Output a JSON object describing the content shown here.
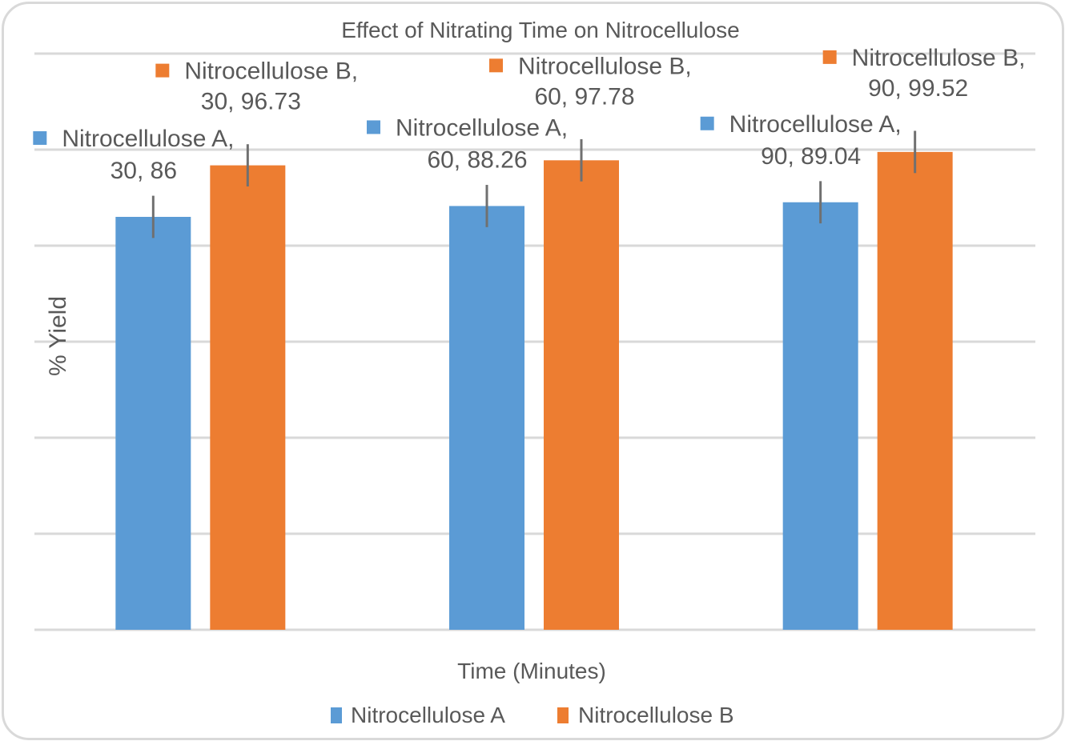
{
  "chart_data": {
    "type": "bar",
    "title": "Effect of Nitrating Time on Nitrocellulose",
    "xlabel": "Time (Minutes)",
    "ylabel": "% Yield",
    "categories": [
      "30",
      "60",
      "90"
    ],
    "ylim": [
      0,
      120
    ],
    "gridline_step": 20,
    "grid": true,
    "y_tick_labels_visible": false,
    "legend_position": "bottom",
    "series": [
      {
        "name": "Nitrocellulose A",
        "color": "#5b9bd5",
        "values": [
          86,
          88.26,
          89.04
        ],
        "error": [
          4.4,
          4.4,
          4.4
        ],
        "data_labels": [
          {
            "series": "Nitrocellulose A,",
            "value": "30, 86"
          },
          {
            "series": "Nitrocellulose A,",
            "value": "60, 88.26"
          },
          {
            "series": "Nitrocellulose A,",
            "value": "90, 89.04"
          }
        ]
      },
      {
        "name": "Nitrocellulose B",
        "color": "#ed7d31",
        "values": [
          96.73,
          97.78,
          99.52
        ],
        "error": [
          4.4,
          4.4,
          4.4
        ],
        "data_labels": [
          {
            "series": "Nitrocellulose B,",
            "value": "30, 96.73"
          },
          {
            "series": "Nitrocellulose B,",
            "value": "60, 97.78"
          },
          {
            "series": "Nitrocellulose B,",
            "value": "90, 99.52"
          }
        ]
      }
    ]
  }
}
